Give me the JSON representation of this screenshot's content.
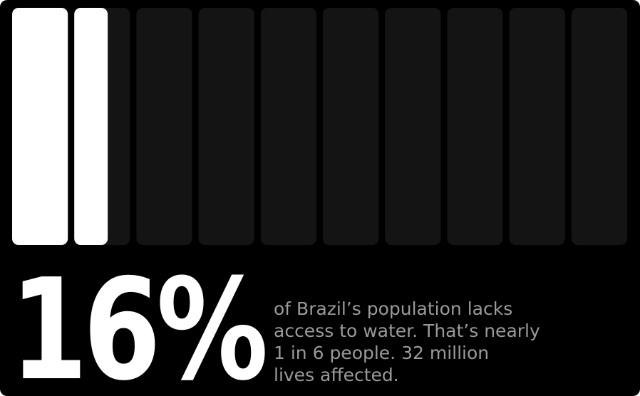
{
  "colors": {
    "background": "#000000",
    "filled": "#ffffff",
    "empty": "#141414",
    "text_primary": "#ffffff",
    "text_secondary": "#9a9a9a"
  },
  "chart_data": {
    "type": "bar",
    "title": "",
    "total_units": 10,
    "value_percent": 16,
    "filled_fraction": 0.16
  },
  "stat": {
    "value": "16%"
  },
  "description": {
    "lines": [
      "of Brazil’s population lacks",
      "access to water. That’s nearly",
      "1 in 6 people. 32 million",
      "lives affected."
    ]
  }
}
